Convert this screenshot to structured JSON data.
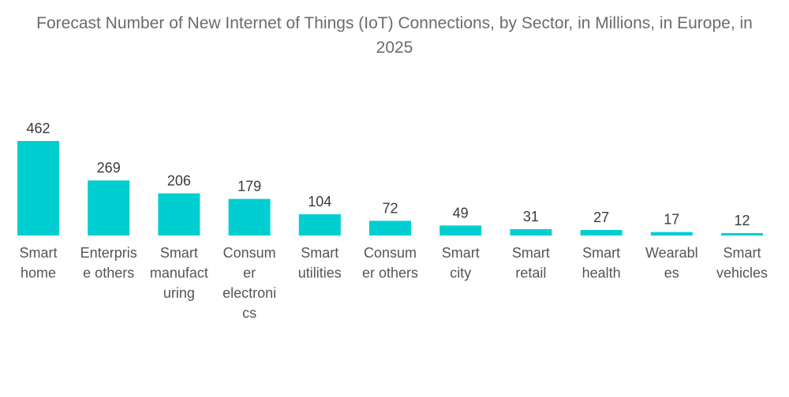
{
  "chart_data": {
    "type": "bar",
    "title": "Forecast Number of New Internet of Things (IoT) Connections, by Sector, in Millions, in Europe, in 2025",
    "xlabel": "",
    "ylabel": "",
    "ylim": [
      0,
      462
    ],
    "grid": false,
    "legend": "none",
    "bar_color": "#00CED1",
    "categories": [
      [
        "Smart",
        "home"
      ],
      [
        "Enterpris",
        "e others"
      ],
      [
        "Smart",
        "manufact",
        "uring"
      ],
      [
        "Consum",
        "er",
        "electroni",
        "cs"
      ],
      [
        "Smart",
        "utilities"
      ],
      [
        "Consum",
        "er others"
      ],
      [
        "Smart",
        "city"
      ],
      [
        "Smart",
        "retail"
      ],
      [
        "Smart",
        "health"
      ],
      [
        "Wearabl",
        "es"
      ],
      [
        "Smart",
        "vehicles"
      ]
    ],
    "values": [
      462,
      269,
      206,
      179,
      104,
      72,
      49,
      31,
      27,
      17,
      12
    ]
  }
}
